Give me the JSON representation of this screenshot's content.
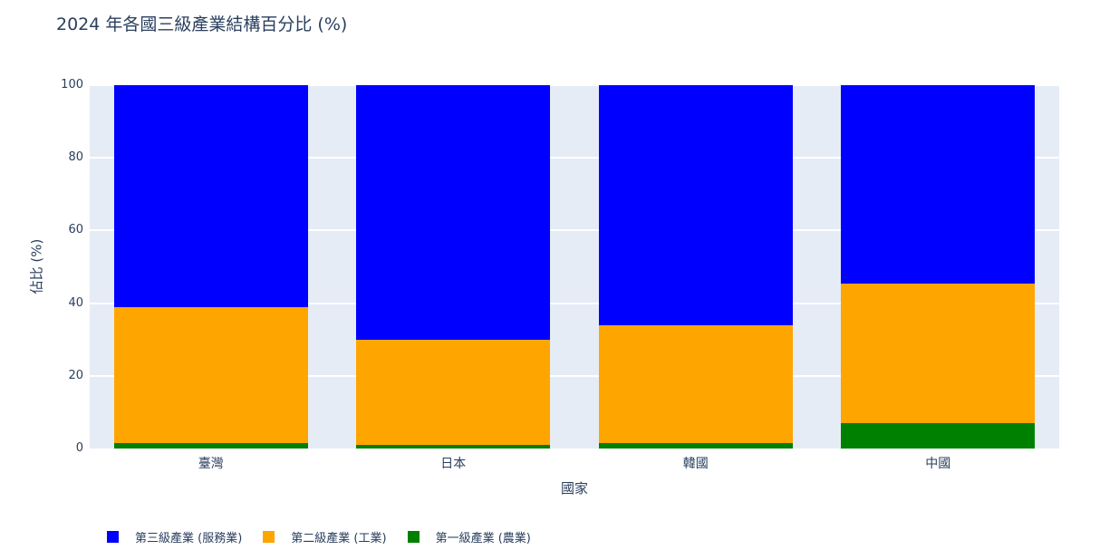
{
  "title": "2024 年各國三級產業結構百分比 (%)",
  "x_axis": {
    "label": "國家",
    "categories": [
      "臺灣",
      "日本",
      "韓國",
      "中國"
    ]
  },
  "y_axis": {
    "label": "佔比 (%)",
    "ticks": [
      0,
      20,
      40,
      60,
      80,
      100
    ],
    "range": [
      0,
      100
    ]
  },
  "legend": [
    {
      "label": "第三級產業 (服務業)",
      "color": "#0000ff"
    },
    {
      "label": "第二級產業 (工業)",
      "color": "#ffa500"
    },
    {
      "label": "第一級產業 (農業)",
      "color": "#008000"
    }
  ],
  "colors": {
    "plot_background": "#e5ecf6",
    "gridline": "#ffffff",
    "text": "#2a3f5f",
    "services": "#0000ff",
    "industry": "#ffa500",
    "agriculture": "#008000"
  },
  "chart_data": {
    "type": "bar",
    "stacked": true,
    "title": "2024 年各國三級產業結構百分比 (%)",
    "xlabel": "國家",
    "ylabel": "佔比 (%)",
    "ylim": [
      0,
      100
    ],
    "grid": true,
    "legend_position": "bottom-left",
    "categories": [
      "臺灣",
      "日本",
      "韓國",
      "中國"
    ],
    "series": [
      {
        "name": "第三級產業 (服務業)",
        "color": "#0000ff",
        "values": [
          61.0,
          70.0,
          66.0,
          54.5
        ]
      },
      {
        "name": "第二級產業 (工業)",
        "color": "#ffa500",
        "values": [
          37.5,
          29.0,
          32.4,
          38.5
        ]
      },
      {
        "name": "第一級產業 (農業)",
        "color": "#008000",
        "values": [
          1.5,
          1.0,
          1.6,
          7.0
        ]
      }
    ]
  }
}
